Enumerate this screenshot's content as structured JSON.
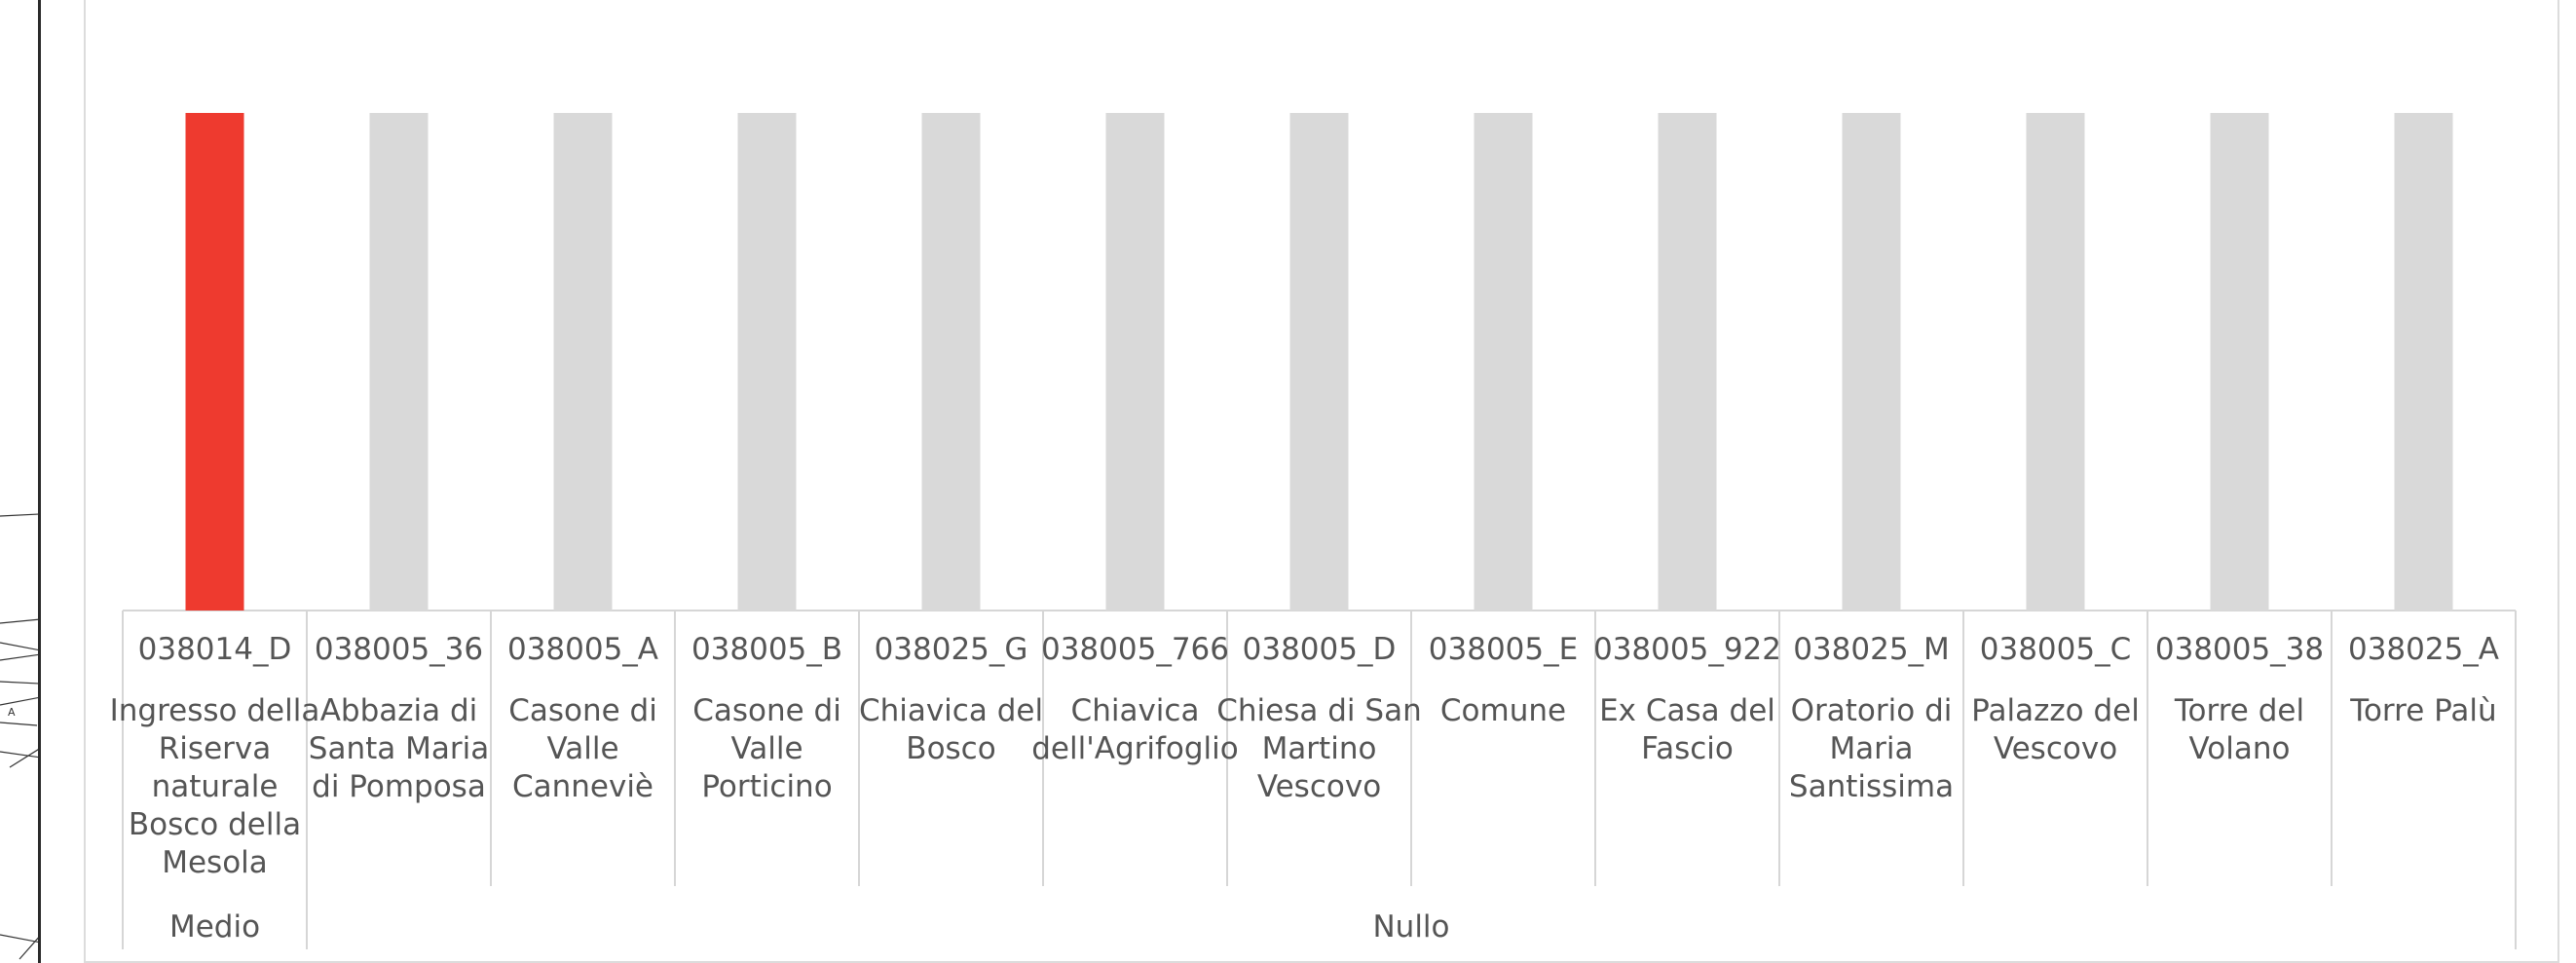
{
  "chart_data": {
    "type": "bar",
    "categories": [
      {
        "code": "038014_D",
        "name": [
          "Ingresso della",
          "Riserva",
          "naturale",
          "Bosco della",
          "Mesola"
        ],
        "group": "Medio"
      },
      {
        "code": "038005_36",
        "name": [
          "Abbazia di",
          "Santa Maria",
          "di Pomposa"
        ],
        "group": "Nullo"
      },
      {
        "code": "038005_A",
        "name": [
          "Casone di",
          "Valle",
          "Canneviè"
        ],
        "group": "Nullo"
      },
      {
        "code": "038005_B",
        "name": [
          "Casone di",
          "Valle",
          "Porticino"
        ],
        "group": "Nullo"
      },
      {
        "code": "038025_G",
        "name": [
          "Chiavica del",
          "Bosco"
        ],
        "group": "Nullo"
      },
      {
        "code": "038005_766",
        "name": [
          "Chiavica",
          "dell'Agrifoglio"
        ],
        "group": "Nullo"
      },
      {
        "code": "038005_D",
        "name": [
          "Chiesa di San",
          "Martino",
          "Vescovo"
        ],
        "group": "Nullo"
      },
      {
        "code": "038005_E",
        "name": [
          "Comune"
        ],
        "group": "Nullo"
      },
      {
        "code": "038005_922",
        "name": [
          "Ex Casa del",
          "Fascio"
        ],
        "group": "Nullo"
      },
      {
        "code": "038025_M",
        "name": [
          "Oratorio di",
          "Maria",
          "Santissima"
        ],
        "group": "Nullo"
      },
      {
        "code": "038005_C",
        "name": [
          "Palazzo del",
          "Vescovo"
        ],
        "group": "Nullo"
      },
      {
        "code": "038005_38",
        "name": [
          "Torre del",
          "Volano"
        ],
        "group": "Nullo"
      },
      {
        "code": "038025_A",
        "name": [
          "Torre Palù"
        ],
        "group": "Nullo"
      }
    ],
    "values": [
      1,
      1,
      1,
      1,
      1,
      1,
      1,
      1,
      1,
      1,
      1,
      1,
      1
    ],
    "groups": [
      {
        "label": "Medio",
        "count": 1
      },
      {
        "label": "Nullo",
        "count": 12
      }
    ],
    "colors": {
      "highlight": "#ee3a2f",
      "default": "#d9d9d9",
      "axis_line": "#d6d6d6",
      "text": "#555555"
    },
    "highlight_index": 0,
    "ylim": [
      0,
      1
    ],
    "grid": false,
    "legend": "none"
  }
}
